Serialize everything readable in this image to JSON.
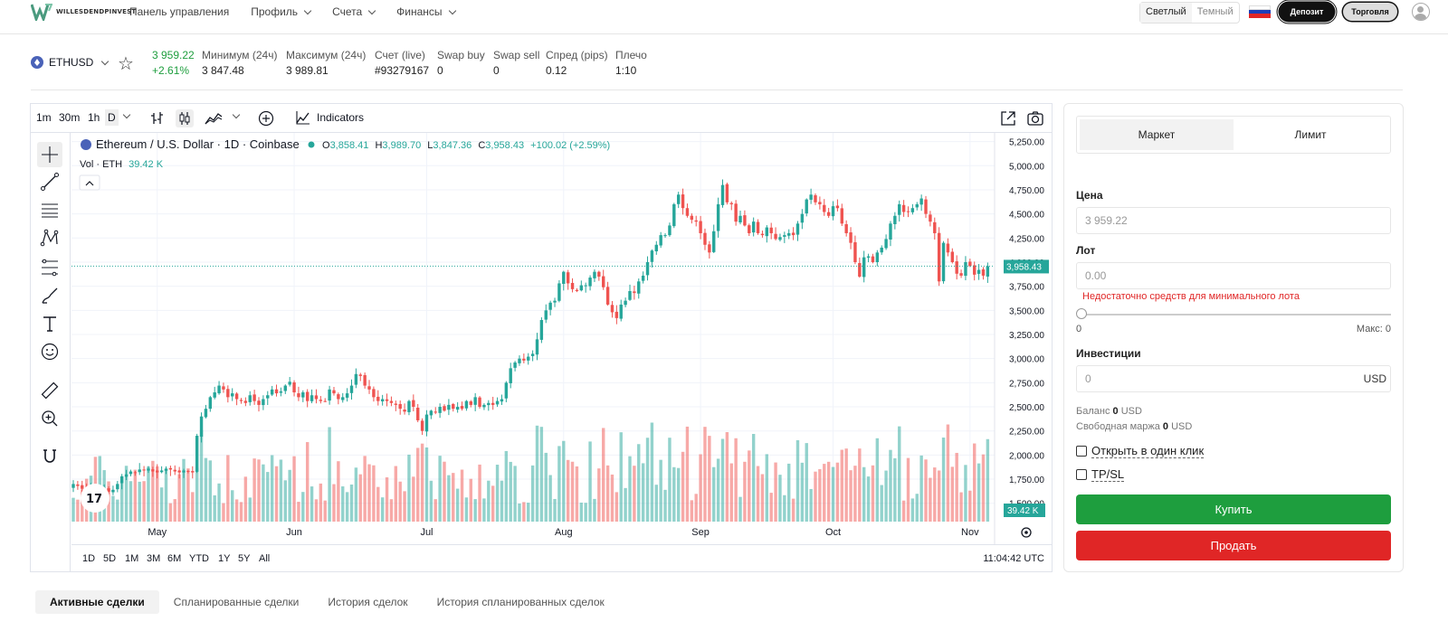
{
  "brand": {
    "name": "WILLESDENDPINVEST",
    "color": "#4a9a7e"
  },
  "nav": [
    {
      "label": "Панель управления",
      "has_menu": false
    },
    {
      "label": "Профиль",
      "has_menu": true
    },
    {
      "label": "Счета",
      "has_menu": true
    },
    {
      "label": "Финансы",
      "has_menu": true
    }
  ],
  "theme": {
    "light": "Светлый",
    "dark": "Темный"
  },
  "header_buttons": {
    "deposit": "Депозит",
    "trade": "Торговля"
  },
  "symbol": {
    "name": "ETHUSD",
    "price": "3 959.22",
    "change": "+2.61%",
    "stats": [
      {
        "label": "Минимум (24ч)",
        "value": "3 847.48"
      },
      {
        "label": "Максимум (24ч)",
        "value": "3 989.81"
      },
      {
        "label": "Счет (live)",
        "value": "#93279167"
      },
      {
        "label": "Swap buy",
        "value": "0"
      },
      {
        "label": "Swap sell",
        "value": "0"
      },
      {
        "label": "Спред (pips)",
        "value": "0.12"
      },
      {
        "label": "Плечо",
        "value": "1:10"
      }
    ],
    "up_color": "#1e9e3e"
  },
  "chart_toolbar": {
    "timeframes": [
      "1m",
      "30m",
      "1h",
      "D"
    ],
    "selected": "D",
    "indicators": "Indicators"
  },
  "chart_legend": {
    "title": "Ethereum / U.S. Dollar · 1D · Coinbase",
    "o": "3,858.41",
    "h": "3,989.70",
    "l": "3,847.36",
    "c": "3,958.43",
    "chg": "+100.02 (+2.59%)",
    "vol_label": "Vol · ETH",
    "vol_value": "39.42 K"
  },
  "range_buttons": [
    "1D",
    "5D",
    "1M",
    "3M",
    "6M",
    "YTD",
    "1Y",
    "5Y",
    "All"
  ],
  "clock": "11:04:42 UTC",
  "chart_data": {
    "type": "candlestick",
    "title": "Ethereum / U.S. Dollar · 1D · Coinbase",
    "y_ticks": [
      1500,
      1750,
      2000,
      2250,
      2500,
      2750,
      3000,
      3250,
      3500,
      3750,
      4000,
      4250,
      4500,
      4750,
      5000,
      5250
    ],
    "y_tick_labels": [
      "1,500.00",
      "1,750.00",
      "2,000.00",
      "2,250.00",
      "2,500.00",
      "2,750.00",
      "3,000.00",
      "3,250.00",
      "3,500.00",
      "3,750.00",
      "4,000.00",
      "4,250.00",
      "4,500.00",
      "4,750.00",
      "5,000.00",
      "5,250.00"
    ],
    "ylim": [
      1310,
      5340
    ],
    "x_labels": [
      {
        "label": "May",
        "day": 19
      },
      {
        "label": "Jun",
        "day": 50
      },
      {
        "label": "Jul",
        "day": 80
      },
      {
        "label": "Aug",
        "day": 111
      },
      {
        "label": "Sep",
        "day": 142
      },
      {
        "label": "Oct",
        "day": 172
      },
      {
        "label": "Nov",
        "day": 203
      }
    ],
    "last_price": 3958.43,
    "last_price_label": "3,958.43",
    "last_volume_label": "39.42 K",
    "up_color": "#26a69a",
    "down_color": "#ef5350",
    "closes": [
      1700,
      1680,
      1650,
      1640,
      1660,
      1630,
      1650,
      1660,
      1620,
      1640,
      1700,
      1780,
      1800,
      1830,
      1820,
      1850,
      1840,
      1860,
      1830,
      1820,
      1840,
      1860,
      1850,
      1830,
      1820,
      1840,
      1830,
      1820,
      2200,
      2400,
      2480,
      2600,
      2650,
      2720,
      2680,
      2600,
      2640,
      2580,
      2560,
      2540,
      2620,
      2560,
      2520,
      2580,
      2620,
      2680,
      2640,
      2660,
      2720,
      2760,
      2650,
      2600,
      2650,
      2560,
      2620,
      2580,
      2560,
      2560,
      2680,
      2640,
      2580,
      2600,
      2640,
      2720,
      2840,
      2820,
      2720,
      2680,
      2600,
      2560,
      2580,
      2560,
      2540,
      2520,
      2480,
      2450,
      2560,
      2500,
      2360,
      2250,
      2420,
      2460,
      2440,
      2500,
      2460,
      2520,
      2480,
      2500,
      2480,
      2560,
      2520,
      2600,
      2500,
      2520,
      2540,
      2520,
      2560,
      2580,
      2750,
      2900,
      2960,
      3000,
      2980,
      3020,
      3050,
      3200,
      3400,
      3500,
      3580,
      3600,
      3780,
      3900,
      3780,
      3720,
      3700,
      3760,
      3760,
      3840,
      3900,
      3850,
      3740,
      3560,
      3480,
      3420,
      3560,
      3600,
      3700,
      3680,
      3800,
      3860,
      4000,
      4120,
      4180,
      4280,
      4280,
      4380,
      4600,
      4700,
      4560,
      4480,
      4440,
      4420,
      4300,
      4180,
      4100,
      4320,
      4600,
      4800,
      4620,
      4600,
      4420,
      4480,
      4380,
      4300,
      4420,
      4300,
      4280,
      4360,
      4300,
      4240,
      4260,
      4280,
      4300,
      4280,
      4400,
      4500,
      4650,
      4700,
      4620,
      4600,
      4520,
      4480,
      4580,
      4560,
      4400,
      4300,
      4200,
      4000,
      3850,
      4050,
      4060,
      4000,
      4100,
      4150,
      4240,
      4400,
      4480,
      4600,
      4520,
      4520,
      4560,
      4600,
      4660,
      4500,
      4420,
      4300,
      3800,
      4200,
      4100,
      4000,
      3880,
      3860,
      4000,
      3960,
      3870,
      3920,
      3860,
      3958
    ]
  },
  "order": {
    "tabs": [
      "Маркет",
      "Лимит"
    ],
    "selected_tab": "Маркет",
    "price_label": "Цена",
    "price_value": "3 959.22",
    "lot_label": "Лот",
    "lot_placeholder": "0.00",
    "lot_error": "Недостаточно средств для минимального лота",
    "slider_min": "0",
    "slider_max": "Макс: 0",
    "slider_value": 0,
    "invest_label": "Инвестиции",
    "invest_value": "0",
    "invest_unit": "USD",
    "balance_label": "Баланс",
    "balance_value": "0",
    "balance_unit": "USD",
    "margin_label": "Свободная маржа",
    "margin_value": "0",
    "margin_unit": "USD",
    "one_click": "Открыть в один клик",
    "tpsl": "TP/SL",
    "buy": "Купить",
    "sell": "Продать",
    "buy_color": "#1e9e3e",
    "sell_color": "#e02626"
  },
  "bottom_tabs": [
    "Активные сделки",
    "Спланированные сделки",
    "История сделок",
    "История спланированных сделок"
  ],
  "bottom_selected": "Активные сделки"
}
